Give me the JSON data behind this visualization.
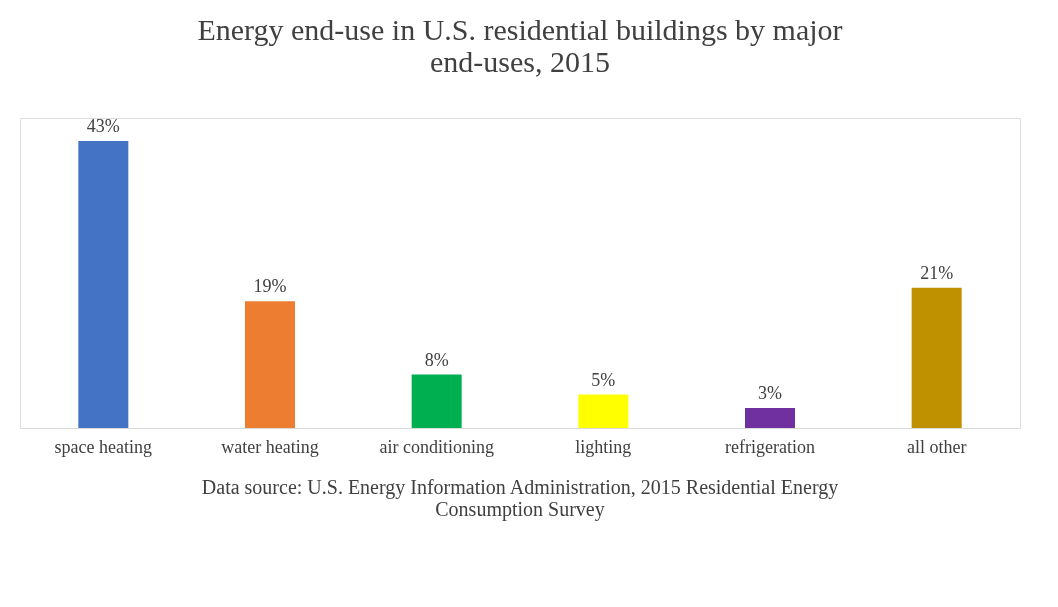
{
  "chart_data": {
    "type": "bar",
    "title": "Energy end-use in U.S. residential buildings by major end-uses, 2015",
    "categories": [
      "space heating",
      "water heating",
      "air conditioning",
      "lighting",
      "refrigeration",
      "all other"
    ],
    "values": [
      43,
      19,
      8,
      5,
      3,
      21
    ],
    "colors": [
      "#4472c4",
      "#ed7d31",
      "#00b050",
      "#ffff00",
      "#7030a0",
      "#bf9000"
    ],
    "value_labels": [
      "43%",
      "19%",
      "8%",
      "5%",
      "3%",
      "21%"
    ],
    "tick_labels": "x",
    "grid": false,
    "annotations": [
      "Data source: U.S. Energy Information Administration, 2015 Residential Energy Consumption Survey"
    ]
  }
}
